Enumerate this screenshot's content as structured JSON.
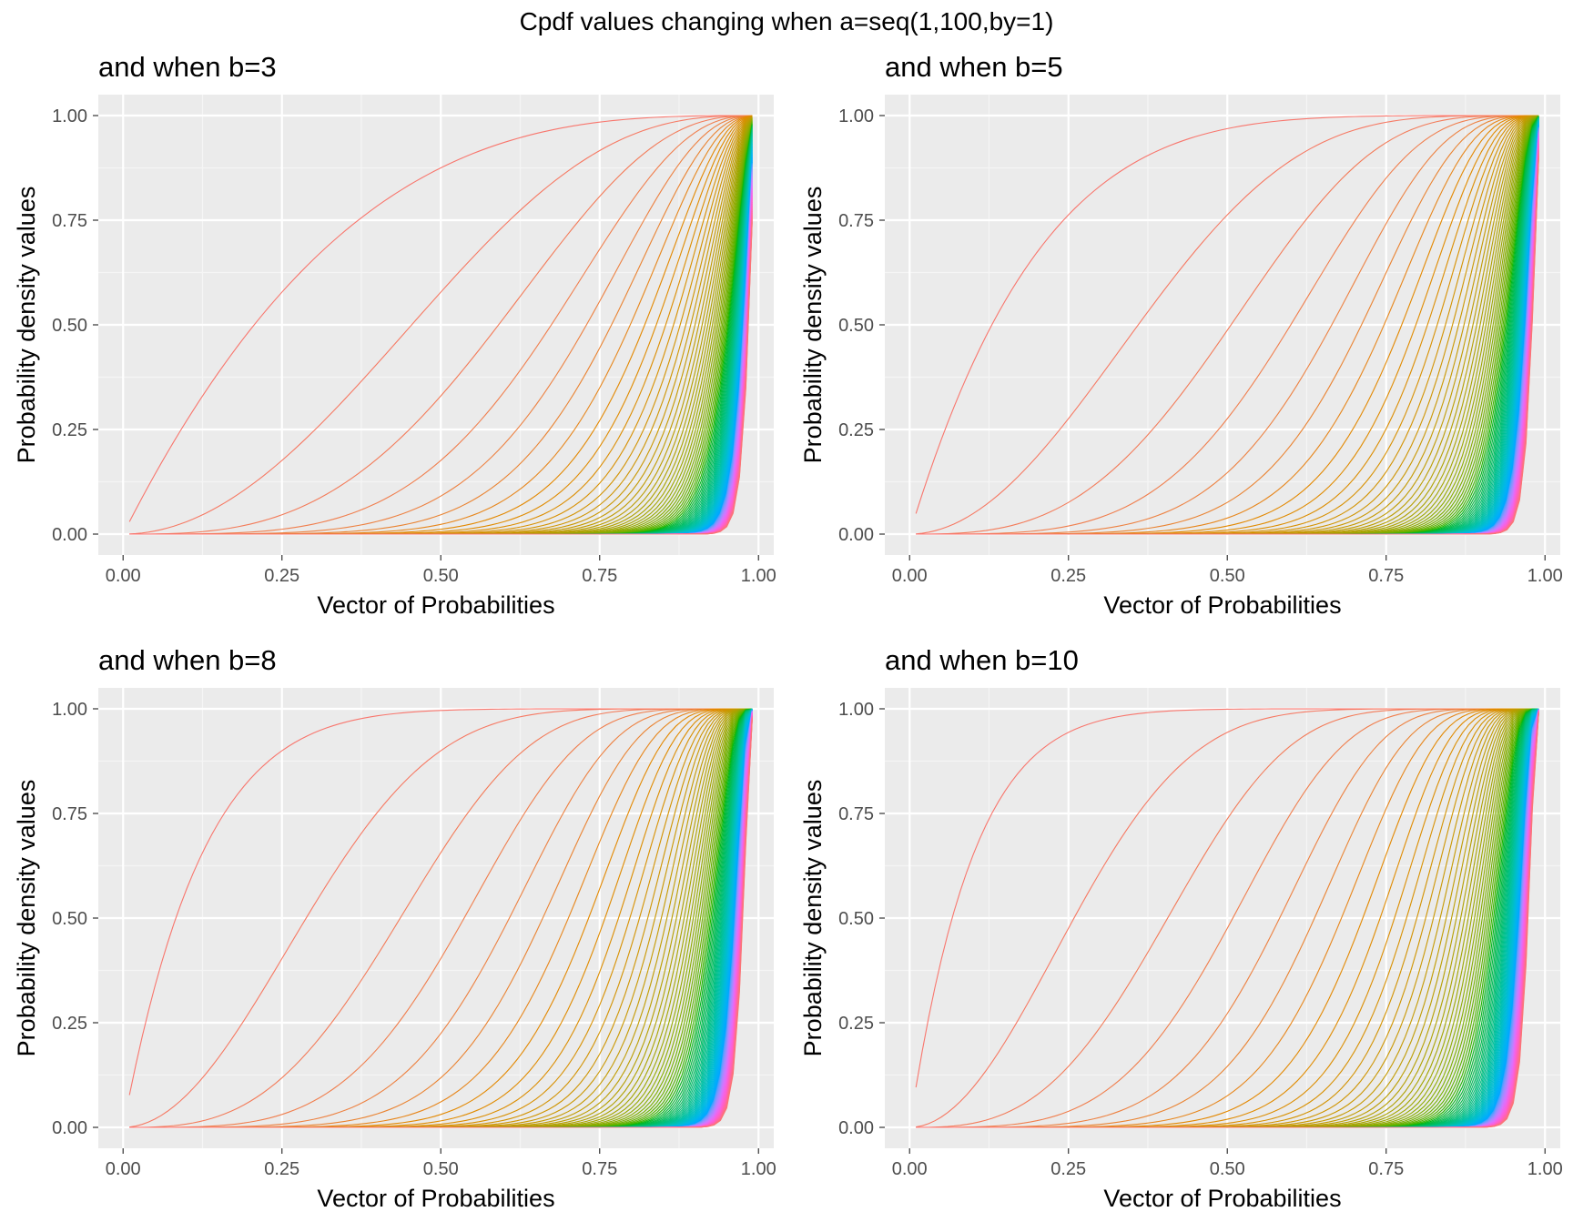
{
  "figure": {
    "title": "Cpdf values changing when a=seq(1,100,by=1)"
  },
  "chart_data": [
    {
      "type": "line",
      "title": "and when b=3",
      "b": 3,
      "a_values": "seq(1,100,by=1)",
      "series_count": 100,
      "xlabel": "Vector of Probabilities",
      "ylabel": "Probability density values",
      "xlim": [
        0,
        1
      ],
      "ylim": [
        0,
        1
      ],
      "xticks": [
        "0.00",
        "0.25",
        "0.50",
        "0.75",
        "1.00"
      ],
      "yticks": [
        "0.00",
        "0.25",
        "0.50",
        "0.75",
        "1.00"
      ],
      "x_range": [
        0.01,
        0.99
      ],
      "grid": true,
      "legend": "none",
      "color_scale": "hue palette, a=1 red → a=100 pink"
    },
    {
      "type": "line",
      "title": "and when b=5",
      "b": 5,
      "a_values": "seq(1,100,by=1)",
      "series_count": 100,
      "xlabel": "Vector of Probabilities",
      "ylabel": "Probability density values",
      "xlim": [
        0,
        1
      ],
      "ylim": [
        0,
        1
      ],
      "xticks": [
        "0.00",
        "0.25",
        "0.50",
        "0.75",
        "1.00"
      ],
      "yticks": [
        "0.00",
        "0.25",
        "0.50",
        "0.75",
        "1.00"
      ],
      "x_range": [
        0.01,
        0.99
      ],
      "grid": true,
      "legend": "none",
      "color_scale": "hue palette, a=1 red → a=100 pink"
    },
    {
      "type": "line",
      "title": "and when b=8",
      "b": 8,
      "a_values": "seq(1,100,by=1)",
      "series_count": 100,
      "xlabel": "Vector of Probabilities",
      "ylabel": "Probability density values",
      "xlim": [
        0,
        1
      ],
      "ylim": [
        0,
        1
      ],
      "xticks": [
        "0.00",
        "0.25",
        "0.50",
        "0.75",
        "1.00"
      ],
      "yticks": [
        "0.00",
        "0.25",
        "0.50",
        "0.75",
        "1.00"
      ],
      "x_range": [
        0.01,
        0.99
      ],
      "grid": true,
      "legend": "none",
      "color_scale": "hue palette, a=1 red → a=100 pink"
    },
    {
      "type": "line",
      "title": "and when b=10",
      "b": 10,
      "a_values": "seq(1,100,by=1)",
      "series_count": 100,
      "xlabel": "Vector of Probabilities",
      "ylabel": "Probability density values",
      "xlim": [
        0,
        1
      ],
      "ylim": [
        0,
        1
      ],
      "xticks": [
        "0.00",
        "0.25",
        "0.50",
        "0.75",
        "1.00"
      ],
      "yticks": [
        "0.00",
        "0.25",
        "0.50",
        "0.75",
        "1.00"
      ],
      "x_range": [
        0.01,
        0.99
      ],
      "grid": true,
      "legend": "none",
      "color_scale": "hue palette, a=1 red → a=100 pink"
    }
  ],
  "colors": {
    "panel_background": "#ebebeb",
    "grid_major": "#ffffff",
    "tick_label": "#4d4d4d",
    "tick_mark": "#333333"
  }
}
